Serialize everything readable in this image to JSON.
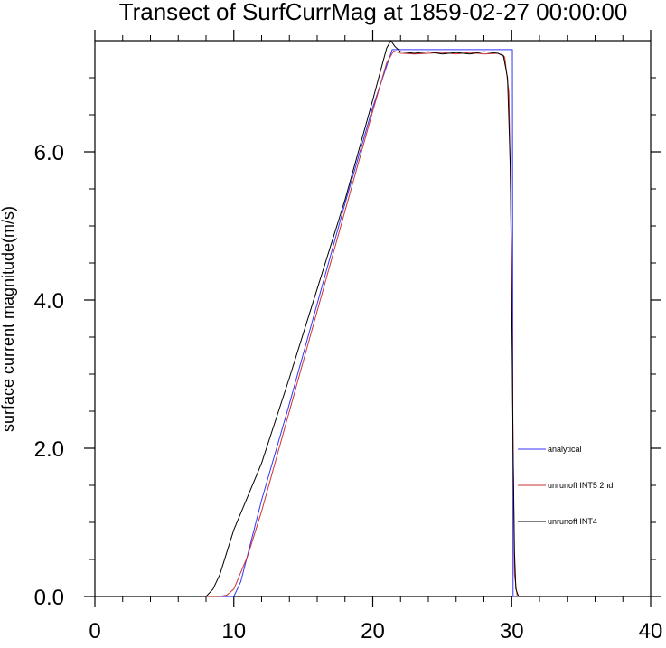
{
  "chart_data": {
    "type": "line",
    "title": "Transect of SurfCurrMag at 1859-02-27 00:00:00",
    "xlabel": "",
    "ylabel": "surface current magnitude(m/s)",
    "xlim": [
      0,
      40
    ],
    "ylim": [
      0,
      7.5
    ],
    "x_ticks": [
      0,
      10,
      20,
      30,
      40
    ],
    "x_tick_labels": [
      "0",
      "10",
      "20",
      "30",
      "40"
    ],
    "y_ticks": [
      0,
      2,
      4,
      6
    ],
    "y_tick_labels": [
      "0.0",
      "2.0",
      "4.0",
      "6.0"
    ],
    "grid": false,
    "legend_position": "right, lower middle",
    "series": [
      {
        "name": "analytical",
        "color": "#3333ff",
        "x": [
          0,
          10,
          10.5,
          12,
          14,
          16,
          18,
          20,
          21.4,
          22,
          25,
          29.5,
          30.05,
          30.1,
          35,
          40
        ],
        "y": [
          0,
          0,
          0.2,
          1.3,
          2.6,
          3.95,
          5.3,
          6.6,
          7.38,
          7.38,
          7.38,
          7.38,
          7.38,
          0,
          0,
          0
        ]
      },
      {
        "name": "unrunoff INT5 2nd",
        "color": "#cc3333",
        "x": [
          0,
          9,
          9.5,
          10,
          11,
          12,
          14,
          16,
          18,
          20,
          21,
          21.5,
          22,
          23,
          24,
          25,
          26,
          27,
          28,
          29,
          29.5,
          29.8,
          30.0,
          30.1,
          30.2,
          30.4,
          35,
          40
        ],
        "y": [
          0,
          0,
          0.02,
          0.1,
          0.55,
          1.15,
          2.5,
          3.85,
          5.2,
          6.55,
          7.2,
          7.36,
          7.33,
          7.32,
          7.33,
          7.34,
          7.32,
          7.34,
          7.32,
          7.33,
          7.28,
          6.8,
          4.5,
          2.0,
          0.3,
          0,
          0,
          0
        ]
      },
      {
        "name": "unrunoff INT4",
        "color": "#000000",
        "x": [
          0,
          8,
          8.5,
          9,
          9.5,
          10,
          11,
          12,
          14,
          16,
          18,
          20,
          20.5,
          21,
          21.3,
          21.6,
          22,
          23,
          24,
          25,
          26,
          27,
          28,
          29,
          29.4,
          29.7,
          29.9,
          30.0,
          30.1,
          30.2,
          30.3,
          30.5,
          35,
          40
        ],
        "y": [
          0,
          0,
          0.1,
          0.3,
          0.6,
          0.9,
          1.35,
          1.8,
          2.95,
          4.15,
          5.35,
          6.7,
          7.05,
          7.4,
          7.5,
          7.42,
          7.35,
          7.33,
          7.35,
          7.32,
          7.34,
          7.32,
          7.35,
          7.33,
          7.3,
          7.0,
          5.8,
          4.0,
          2.0,
          0.6,
          0.1,
          0,
          0,
          0
        ]
      }
    ]
  }
}
